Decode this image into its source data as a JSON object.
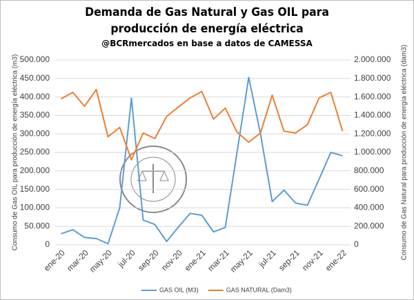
{
  "chart_data": {
    "type": "line",
    "title": "Demanda de Gas Natural y Gas OIL para producción de energía eléctrica",
    "subtitle": "@BCRmercados en base a datos de CAMESSA",
    "ylabel": "Consumo de Gas OIL para producción de energía eléctrica (m3)",
    "y2label": "Consumo de Gas Natural para producción de energía eléctrica (dam3)",
    "categories": [
      "ene-20",
      null,
      "mar-20",
      null,
      "may-20",
      null,
      "jul-20",
      null,
      "sep-20",
      null,
      "nov-20",
      null,
      "ene-21",
      null,
      "mar-21",
      null,
      "may-21",
      null,
      "jul-21",
      null,
      "sep-21",
      null,
      "nov-21",
      null,
      "ene-22"
    ],
    "series": [
      {
        "name": "GAS OIL (M3)",
        "color": "#5b9bd5",
        "values": [
          30000,
          41000,
          20000,
          17000,
          3000,
          100000,
          397000,
          67000,
          55000,
          9000,
          48000,
          85000,
          80000,
          35000,
          47000,
          250000,
          453000,
          300000,
          117000,
          148000,
          113000,
          107000,
          178000,
          250000,
          241000
        ]
      },
      {
        "name": "GAS NATURAL (Dam3)",
        "color": "#ed7d31",
        "axis": "y2",
        "values": [
          1580000,
          1650000,
          1500000,
          1680000,
          1170000,
          1270000,
          920000,
          1210000,
          1150000,
          1390000,
          1490000,
          1590000,
          1660000,
          1360000,
          1480000,
          1220000,
          1110000,
          1210000,
          1620000,
          1230000,
          1210000,
          1300000,
          1590000,
          1650000,
          1230000
        ]
      }
    ],
    "ylim": [
      0,
      500000
    ],
    "yticks": [
      0,
      {
        "value": 50000,
        "label": "50.000"
      },
      {
        "value": 100000,
        "label": "100.000"
      },
      {
        "value": 150000,
        "label": "150.000"
      },
      {
        "value": 200000,
        "label": "200.000"
      },
      {
        "value": 250000,
        "label": "250.000"
      },
      {
        "value": 300000,
        "label": "300.000"
      },
      {
        "value": 350000,
        "label": "350.000"
      },
      {
        "value": 400000,
        "label": "400.000"
      },
      {
        "value": 450000,
        "label": "450.000"
      },
      {
        "value": 500000,
        "label": "500.000"
      }
    ],
    "y2lim": [
      0,
      2000000
    ],
    "y2ticks": [
      0,
      {
        "value": 200000,
        "label": "200.000"
      },
      {
        "value": 400000,
        "label": "400.000"
      },
      {
        "value": 600000,
        "label": "600.000"
      },
      {
        "value": 800000,
        "label": "800.000"
      },
      {
        "value": 1000000,
        "label": "1.000.000"
      },
      {
        "value": 1200000,
        "label": "1.200.000"
      },
      {
        "value": 1400000,
        "label": "1.400.000"
      },
      {
        "value": 1600000,
        "label": "1.600.000"
      },
      {
        "value": 1800000,
        "label": "1.800.000"
      },
      {
        "value": 2000000,
        "label": "2.000.000"
      }
    ],
    "grid": true,
    "legend": "bottom"
  }
}
